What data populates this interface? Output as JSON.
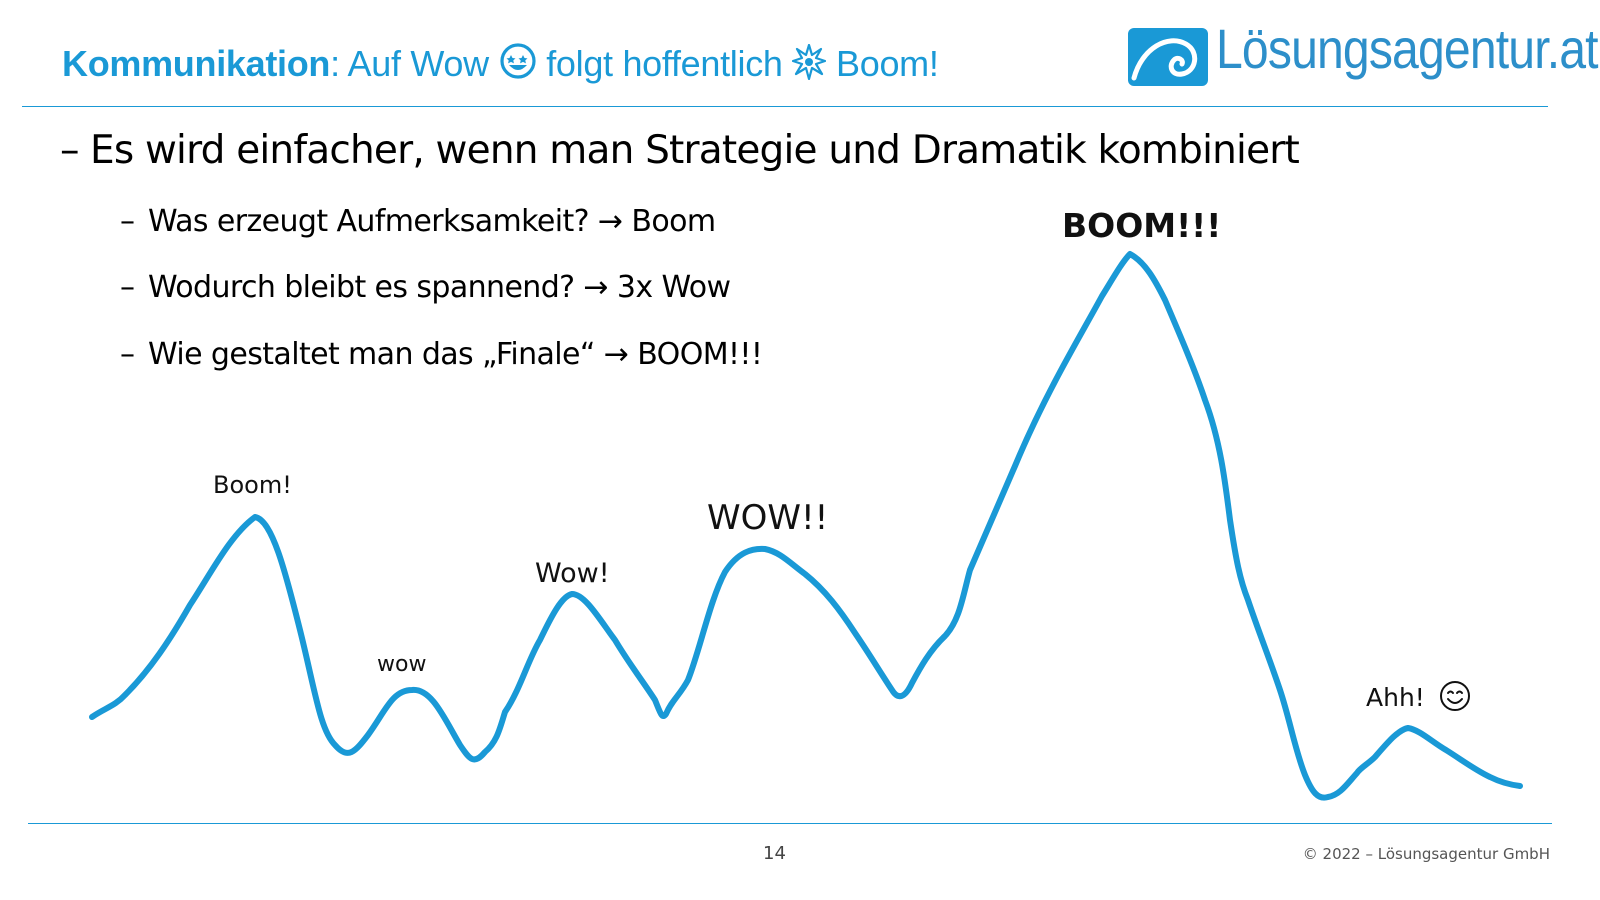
{
  "header": {
    "title_bold": "Kommunikation",
    "title_part1": ": Auf Wow",
    "title_part2": " folgt hoffentlich",
    "title_part3": " Boom!",
    "wow_icon": "star-eyes-smiley-icon",
    "boom_icon": "explosion-burst-icon"
  },
  "logo": {
    "text": "Lösungsagentur.at",
    "icon": "spiral-wave-icon",
    "color": "#1a99d6"
  },
  "content": {
    "main_bullet": "Es wird einfacher, wenn man Strategie und Dramatik kombiniert",
    "sub_bullets": [
      "Was erzeugt Aufmerksamkeit? → Boom",
      "Wodurch bleibt es spannend? → 3x Wow",
      "Wie gestaltet man das „Finale“ → BOOM!!!"
    ]
  },
  "curve": {
    "color": "#1a99d6",
    "labels": {
      "boom1": "Boom!",
      "wow1": "wow",
      "wow2": "Wow!",
      "wow3": "WOW!!",
      "boom2": "BOOM!!!",
      "ahh": "Ahh!"
    },
    "ahh_icon": "smiling-face-icon"
  },
  "footer": {
    "page_number": "14",
    "copyright": "© 2022 – Lösungsagentur GmbH"
  }
}
